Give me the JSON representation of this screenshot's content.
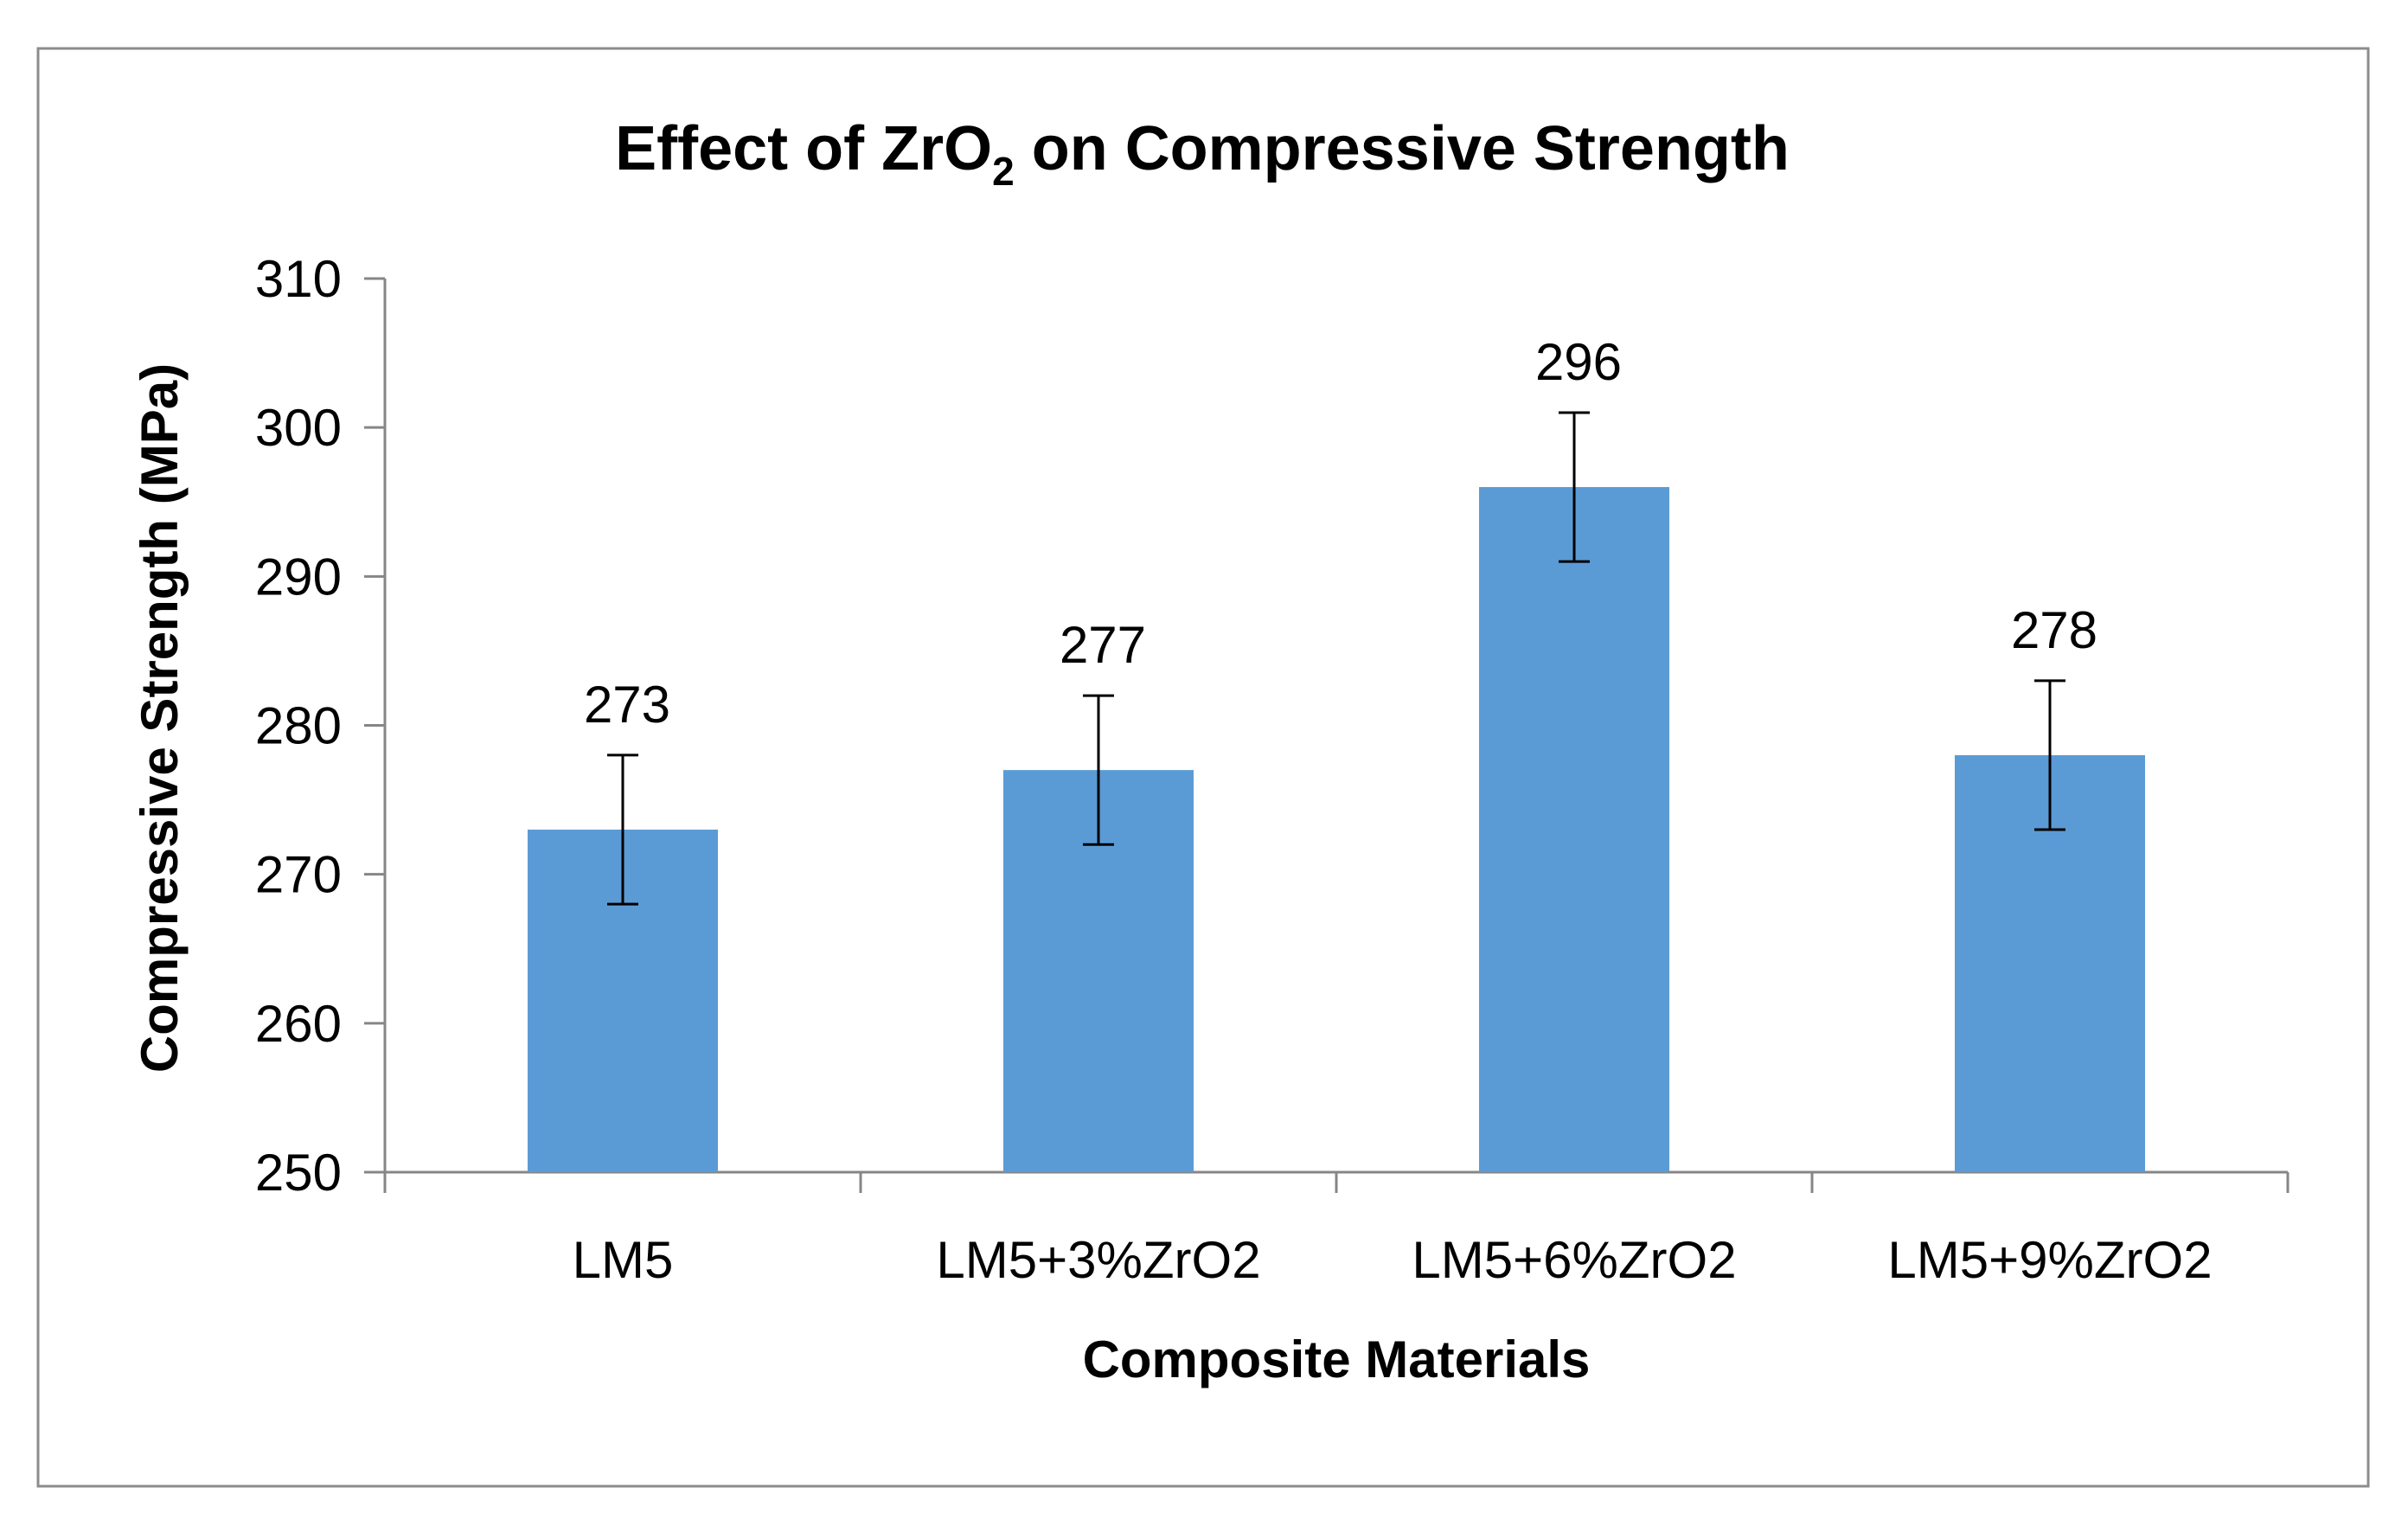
{
  "chart_data": {
    "type": "bar",
    "title_parts": {
      "before": "Effect of ZrO",
      "subscript": "2",
      "after": " on Compressive Strength"
    },
    "xlabel": "Composite Materials",
    "ylabel": "Compressive Strength (MPa)",
    "categories": [
      "LM5",
      "LM5+3%ZrO2",
      "LM5+6%ZrO2",
      "LM5+9%ZrO2"
    ],
    "series": [
      {
        "name": "Compressive Strength",
        "values": [
          273,
          277,
          296,
          278
        ],
        "error": [
          5,
          5,
          5,
          5
        ]
      }
    ],
    "data_labels": [
      "273",
      "277",
      "296",
      "278"
    ],
    "ylim": [
      250,
      310
    ],
    "yticks": [
      250,
      260,
      270,
      280,
      290,
      300,
      310
    ],
    "ytick_labels": [
      "250",
      "260",
      "270",
      "280",
      "290",
      "300",
      "310"
    ],
    "grid": false,
    "legend": "none",
    "bar_color": "#5b9bd5",
    "axis_color": "#868686",
    "error_bar_color": "#000000"
  }
}
